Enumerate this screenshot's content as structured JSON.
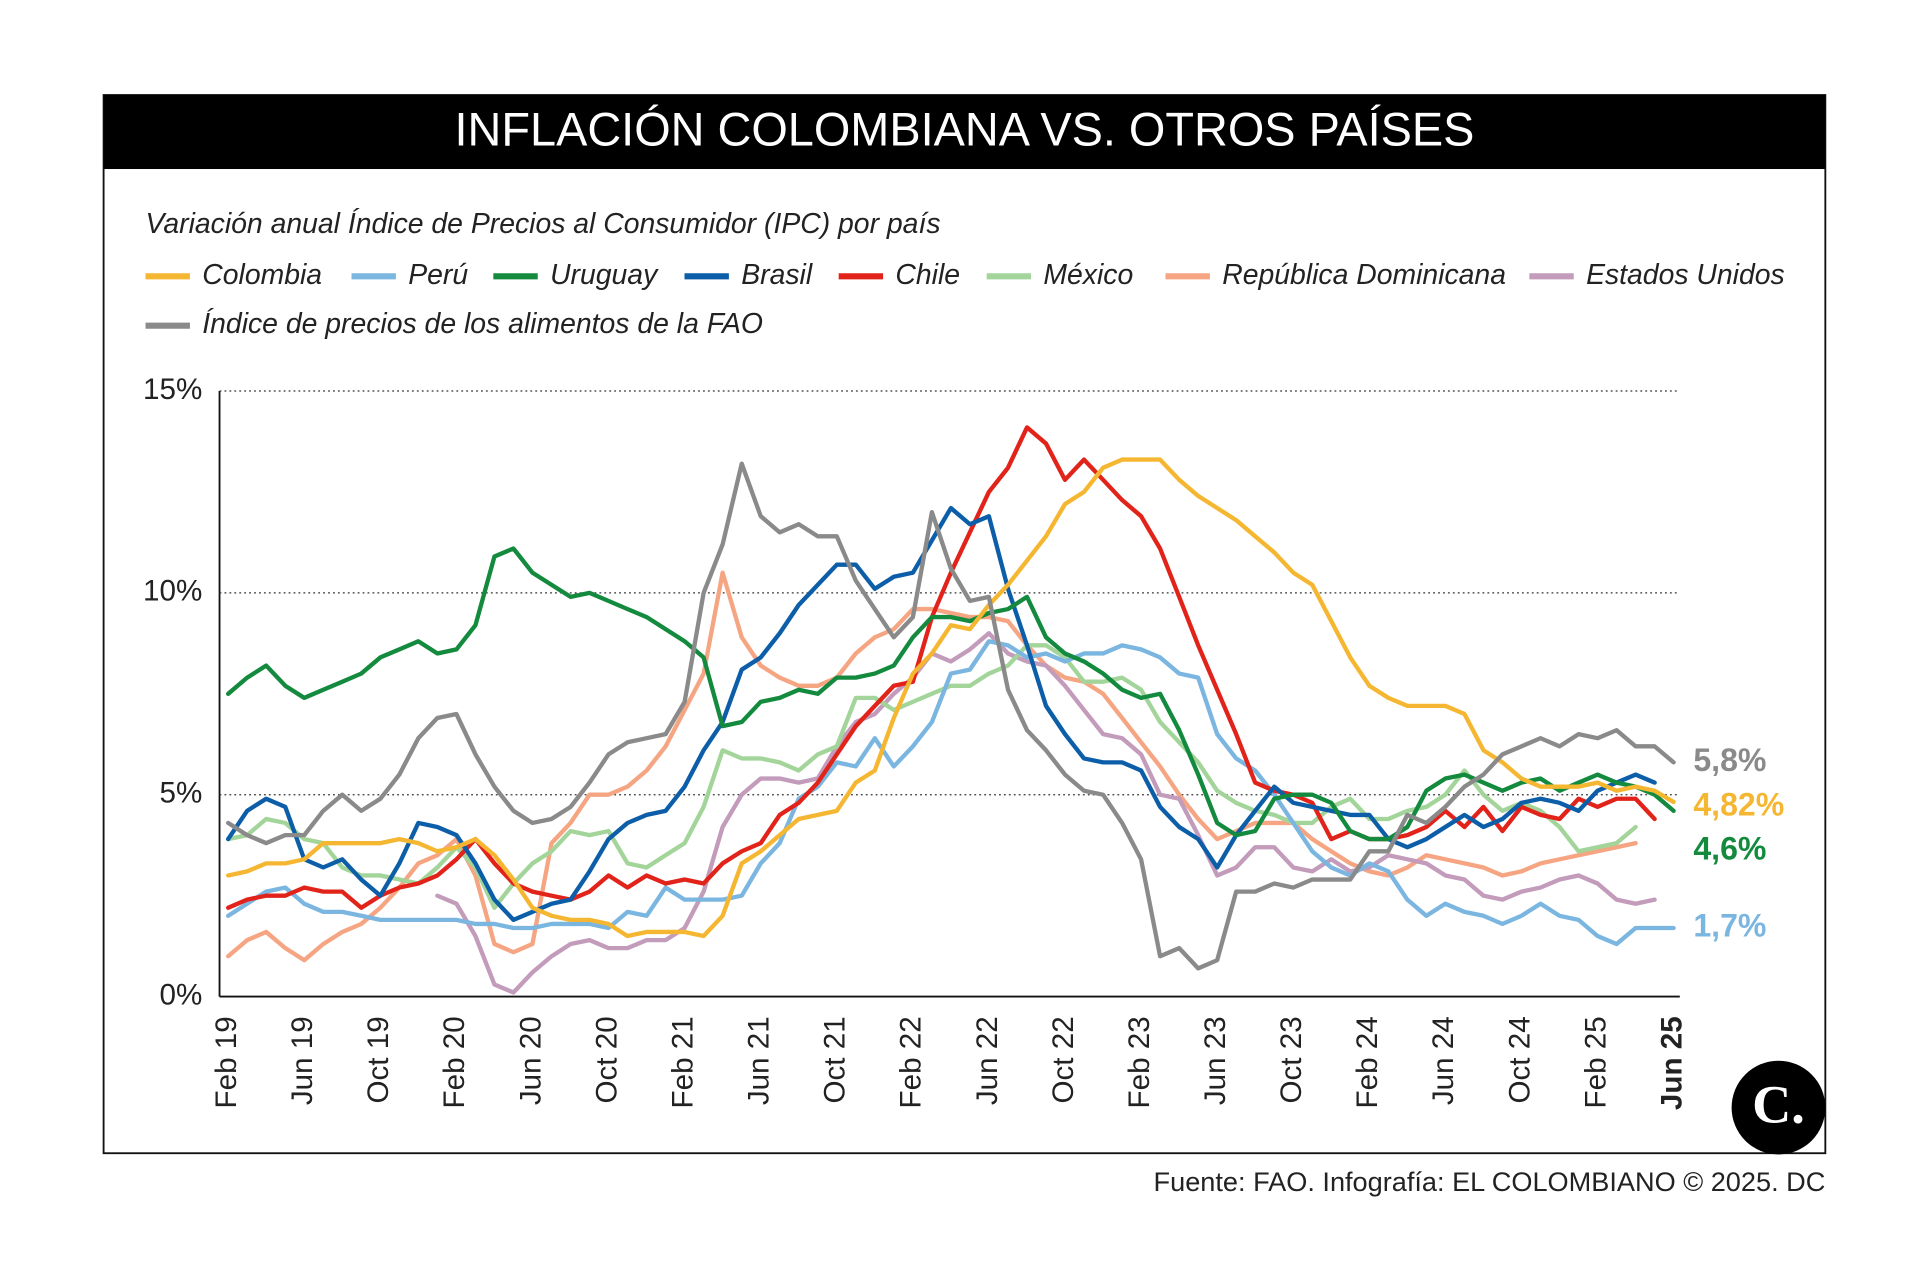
{
  "chart_data": {
    "type": "line",
    "title": "INFLACIÓN COLOMBIANA VS. OTROS PAÍSES",
    "subtitle": "Variación anual Índice de Precios al Consumidor (IPC) por país",
    "source": "Fuente: FAO. Infografía: EL COLOMBIANO © 2025. DC",
    "logo": "C.",
    "categories": [
      "Feb 19",
      null,
      null,
      null,
      "Jun 19",
      null,
      null,
      null,
      "Oct 19",
      null,
      null,
      null,
      "Feb 20",
      null,
      null,
      null,
      "Jun 20",
      null,
      null,
      null,
      "Oct 20",
      null,
      null,
      null,
      "Feb 21",
      null,
      null,
      null,
      "Jun 21",
      null,
      null,
      null,
      "Oct 21",
      null,
      null,
      null,
      "Feb 22",
      null,
      null,
      null,
      "Jun 22",
      null,
      null,
      null,
      "Oct 22",
      null,
      null,
      null,
      "Feb 23",
      null,
      null,
      null,
      "Jun 23",
      null,
      null,
      null,
      "Oct 23",
      null,
      null,
      null,
      "Feb 24",
      null,
      null,
      null,
      "Jun 24",
      null,
      null,
      null,
      "Oct 24",
      null,
      null,
      null,
      "Feb 25",
      null,
      null,
      null,
      "Jun 25"
    ],
    "ylim": [
      0,
      15
    ],
    "yticks": [
      {
        "value": 0,
        "label": "0%"
      },
      {
        "value": 5,
        "label": "5%"
      },
      {
        "value": 10,
        "label": "10%"
      },
      {
        "value": 15,
        "label": "15%"
      }
    ],
    "grid": true,
    "series": [
      {
        "name": "Colombia",
        "color": "#f5b731",
        "values": [
          3.0,
          3.1,
          3.3,
          3.3,
          3.4,
          3.8,
          3.8,
          3.8,
          3.8,
          3.9,
          3.8,
          3.6,
          3.7,
          3.9,
          3.5,
          2.9,
          2.2,
          2.0,
          1.9,
          1.9,
          1.8,
          1.5,
          1.6,
          1.6,
          1.6,
          1.5,
          2.0,
          3.3,
          3.6,
          4.0,
          4.4,
          4.5,
          4.6,
          5.3,
          5.6,
          6.9,
          8.0,
          8.5,
          9.2,
          9.1,
          9.7,
          10.2,
          10.8,
          11.4,
          12.2,
          12.5,
          13.1,
          13.3,
          13.3,
          13.3,
          12.8,
          12.4,
          12.1,
          11.8,
          11.4,
          11.0,
          10.5,
          10.2,
          9.3,
          8.4,
          7.7,
          7.4,
          7.2,
          7.2,
          7.2,
          7.0,
          6.1,
          5.8,
          5.4,
          5.2,
          5.2,
          5.2,
          5.3,
          5.1,
          5.2,
          5.1,
          4.82
        ],
        "value_labels": [
          null,
          null,
          null,
          null,
          null,
          null,
          null,
          null,
          null,
          null,
          null,
          null,
          null,
          null,
          null,
          null,
          null,
          null,
          null,
          null,
          null,
          null,
          null,
          null,
          null,
          null,
          null,
          null,
          null,
          null,
          null,
          null,
          null,
          null,
          null,
          null,
          null,
          null,
          null,
          null,
          null,
          null,
          null,
          null,
          null,
          null,
          null,
          null,
          null,
          null,
          null,
          null,
          null,
          null,
          null,
          null,
          null,
          null,
          null,
          null,
          null,
          null,
          null,
          null,
          null,
          null,
          null,
          null,
          null,
          null,
          null,
          null,
          null,
          null,
          null,
          null,
          "4,82%"
        ]
      },
      {
        "name": "Perú",
        "color": "#7bb6e0",
        "values": [
          2.0,
          2.3,
          2.6,
          2.7,
          2.3,
          2.1,
          2.1,
          2.0,
          1.9,
          1.9,
          1.9,
          1.9,
          1.9,
          1.8,
          1.8,
          1.7,
          1.7,
          1.8,
          1.8,
          1.8,
          1.7,
          2.1,
          2.0,
          2.7,
          2.4,
          2.4,
          2.4,
          2.5,
          3.3,
          3.8,
          4.9,
          5.2,
          5.8,
          5.7,
          6.4,
          5.7,
          6.2,
          6.8,
          8.0,
          8.1,
          8.8,
          8.7,
          8.4,
          8.5,
          8.3,
          8.5,
          8.5,
          8.7,
          8.6,
          8.4,
          8.0,
          7.9,
          6.5,
          5.9,
          5.6,
          5.0,
          4.3,
          3.6,
          3.2,
          3.0,
          3.3,
          3.1,
          2.4,
          2.0,
          2.3,
          2.1,
          2.0,
          1.8,
          2.0,
          2.3,
          2.0,
          1.9,
          1.5,
          1.3,
          1.7,
          1.7,
          1.7
        ],
        "value_labels": [
          null,
          null,
          null,
          null,
          null,
          null,
          null,
          null,
          null,
          null,
          null,
          null,
          null,
          null,
          null,
          null,
          null,
          null,
          null,
          null,
          null,
          null,
          null,
          null,
          null,
          null,
          null,
          null,
          null,
          null,
          null,
          null,
          null,
          null,
          null,
          null,
          null,
          null,
          null,
          null,
          null,
          null,
          null,
          null,
          null,
          null,
          null,
          null,
          null,
          null,
          null,
          null,
          null,
          null,
          null,
          null,
          null,
          null,
          null,
          null,
          null,
          null,
          null,
          null,
          null,
          null,
          null,
          null,
          null,
          null,
          null,
          null,
          null,
          null,
          null,
          null,
          "1,7%"
        ]
      },
      {
        "name": "Uruguay",
        "color": "#138a3e",
        "values": [
          7.5,
          7.9,
          8.2,
          7.7,
          7.4,
          7.6,
          7.8,
          8.0,
          8.4,
          8.6,
          8.8,
          8.5,
          8.6,
          9.2,
          10.9,
          11.1,
          10.5,
          10.2,
          9.9,
          10.0,
          9.8,
          9.6,
          9.4,
          9.1,
          8.8,
          8.4,
          6.7,
          6.8,
          7.3,
          7.4,
          7.6,
          7.5,
          7.9,
          7.9,
          8.0,
          8.2,
          8.9,
          9.4,
          9.4,
          9.3,
          9.5,
          9.6,
          9.9,
          8.9,
          8.5,
          8.3,
          8.0,
          7.6,
          7.4,
          7.5,
          6.6,
          5.5,
          4.3,
          4.0,
          4.1,
          4.9,
          5.0,
          5.0,
          4.8,
          4.1,
          3.9,
          3.9,
          4.2,
          5.1,
          5.4,
          5.5,
          5.3,
          5.1,
          5.3,
          5.4,
          5.1,
          5.3,
          5.5,
          5.3,
          5.2,
          5.0,
          4.6
        ],
        "value_labels": [
          null,
          null,
          null,
          null,
          null,
          null,
          null,
          null,
          null,
          null,
          null,
          null,
          null,
          null,
          null,
          null,
          null,
          null,
          null,
          null,
          null,
          null,
          null,
          null,
          null,
          null,
          null,
          null,
          null,
          null,
          null,
          null,
          null,
          null,
          null,
          null,
          null,
          null,
          null,
          null,
          null,
          null,
          null,
          null,
          null,
          null,
          null,
          null,
          null,
          null,
          null,
          null,
          null,
          null,
          null,
          null,
          null,
          null,
          null,
          null,
          null,
          null,
          null,
          null,
          null,
          null,
          null,
          null,
          null,
          null,
          null,
          null,
          null,
          null,
          null,
          null,
          "4,6%"
        ]
      },
      {
        "name": "Brasil",
        "color": "#0d5ea8",
        "values": [
          3.9,
          4.6,
          4.9,
          4.7,
          3.4,
          3.2,
          3.4,
          2.9,
          2.5,
          3.3,
          4.3,
          4.2,
          4.0,
          3.3,
          2.4,
          1.9,
          2.1,
          2.3,
          2.4,
          3.1,
          3.9,
          4.3,
          4.5,
          4.6,
          5.2,
          6.1,
          6.8,
          8.1,
          8.4,
          9.0,
          9.7,
          10.2,
          10.7,
          10.7,
          10.1,
          10.4,
          10.5,
          11.3,
          12.1,
          11.7,
          11.9,
          10.1,
          8.7,
          7.2,
          6.5,
          5.9,
          5.8,
          5.8,
          5.6,
          4.7,
          4.2,
          3.9,
          3.2,
          4.0,
          4.6,
          5.2,
          4.8,
          4.7,
          4.6,
          4.5,
          4.5,
          3.9,
          3.7,
          3.9,
          4.2,
          4.5,
          4.2,
          4.4,
          4.8,
          4.9,
          4.8,
          4.6,
          5.1,
          5.3,
          5.5,
          5.3,
          null
        ]
      },
      {
        "name": "Chile",
        "color": "#e2231a",
        "values": [
          2.2,
          2.4,
          2.5,
          2.5,
          2.7,
          2.6,
          2.6,
          2.2,
          2.5,
          2.7,
          2.8,
          3.0,
          3.4,
          3.9,
          3.3,
          2.8,
          2.6,
          2.5,
          2.4,
          2.6,
          3.0,
          2.7,
          3.0,
          2.8,
          2.9,
          2.8,
          3.3,
          3.6,
          3.8,
          4.5,
          4.8,
          5.3,
          6.0,
          6.7,
          7.2,
          7.7,
          7.8,
          9.4,
          10.5,
          11.5,
          12.5,
          13.1,
          14.1,
          13.7,
          12.8,
          13.3,
          12.8,
          12.3,
          11.9,
          11.1,
          9.9,
          8.7,
          7.6,
          6.5,
          5.3,
          5.1,
          5.0,
          4.8,
          3.9,
          4.1,
          3.9,
          3.9,
          4.0,
          4.2,
          4.6,
          4.2,
          4.7,
          4.1,
          4.7,
          4.5,
          4.4,
          4.9,
          4.7,
          4.9,
          4.9,
          4.4,
          null
        ]
      },
      {
        "name": "México",
        "color": "#a3d59a",
        "values": [
          3.9,
          4.0,
          4.4,
          4.3,
          3.9,
          3.8,
          3.2,
          3.0,
          3.0,
          2.9,
          2.8,
          3.2,
          3.7,
          3.2,
          2.2,
          2.8,
          3.3,
          3.6,
          4.1,
          4.0,
          4.1,
          3.3,
          3.2,
          3.5,
          3.8,
          4.7,
          6.1,
          5.9,
          5.9,
          5.8,
          5.6,
          6.0,
          6.2,
          7.4,
          7.4,
          7.1,
          7.3,
          7.5,
          7.7,
          7.7,
          8.0,
          8.2,
          8.7,
          8.7,
          8.4,
          7.8,
          7.8,
          7.9,
          7.6,
          6.8,
          6.3,
          5.8,
          5.1,
          4.8,
          4.6,
          4.5,
          4.3,
          4.3,
          4.7,
          4.9,
          4.4,
          4.4,
          4.6,
          4.7,
          5.0,
          5.6,
          5.0,
          4.6,
          4.8,
          4.6,
          4.2,
          3.6,
          3.7,
          3.8,
          4.2,
          null,
          null
        ]
      },
      {
        "name": "República Dominicana",
        "color": "#f6a583",
        "values": [
          1.0,
          1.4,
          1.6,
          1.2,
          0.9,
          1.3,
          1.6,
          1.8,
          2.2,
          2.7,
          3.3,
          3.5,
          3.9,
          3.0,
          1.3,
          1.1,
          1.3,
          3.8,
          4.3,
          5.0,
          5.0,
          5.2,
          5.6,
          6.2,
          7.1,
          8.0,
          10.5,
          8.9,
          8.2,
          7.9,
          7.7,
          7.7,
          7.9,
          8.5,
          8.9,
          9.1,
          9.6,
          9.6,
          9.5,
          9.4,
          9.4,
          9.3,
          8.7,
          8.2,
          7.9,
          7.8,
          7.5,
          6.9,
          6.3,
          5.7,
          5.0,
          4.4,
          3.9,
          4.1,
          4.3,
          4.3,
          4.3,
          3.9,
          3.6,
          3.3,
          3.1,
          3.0,
          3.2,
          3.5,
          3.4,
          3.3,
          3.2,
          3.0,
          3.1,
          3.3,
          3.4,
          3.5,
          3.6,
          3.7,
          3.8,
          null,
          null
        ]
      },
      {
        "name": "Estados Unidos",
        "color": "#c39bbb",
        "values": [
          null,
          null,
          null,
          null,
          null,
          null,
          null,
          null,
          null,
          null,
          null,
          2.5,
          2.3,
          1.5,
          0.3,
          0.1,
          0.6,
          1.0,
          1.3,
          1.4,
          1.2,
          1.2,
          1.4,
          1.4,
          1.7,
          2.6,
          4.2,
          5.0,
          5.4,
          5.4,
          5.3,
          5.4,
          6.2,
          6.8,
          7.0,
          7.5,
          7.9,
          8.5,
          8.3,
          8.6,
          9.0,
          8.5,
          8.3,
          8.2,
          7.7,
          7.1,
          6.5,
          6.4,
          6.0,
          5.0,
          4.9,
          4.0,
          3.0,
          3.2,
          3.7,
          3.7,
          3.2,
          3.1,
          3.4,
          3.1,
          3.2,
          3.5,
          3.4,
          3.3,
          3.0,
          2.9,
          2.5,
          2.4,
          2.6,
          2.7,
          2.9,
          3.0,
          2.8,
          2.4,
          2.3,
          2.4,
          null
        ]
      },
      {
        "name": "Índice de precios de los alimentos de la FAO",
        "color": "#8a8a8a",
        "values": [
          4.3,
          4.0,
          3.8,
          4.0,
          4.0,
          4.6,
          5.0,
          4.6,
          4.9,
          5.5,
          6.4,
          6.9,
          7.0,
          6.0,
          5.2,
          4.6,
          4.3,
          4.4,
          4.7,
          5.3,
          6.0,
          6.3,
          6.4,
          6.5,
          7.3,
          10.0,
          11.2,
          13.2,
          11.9,
          11.5,
          11.7,
          11.4,
          11.4,
          10.3,
          9.6,
          8.9,
          9.4,
          12.0,
          10.6,
          9.8,
          9.9,
          7.6,
          6.6,
          6.1,
          5.5,
          5.1,
          5.0,
          4.3,
          3.4,
          1.0,
          1.2,
          0.7,
          0.9,
          2.6,
          2.6,
          2.8,
          2.7,
          2.9,
          2.9,
          2.9,
          3.6,
          3.6,
          4.5,
          4.3,
          4.7,
          5.2,
          5.5,
          6.0,
          6.2,
          6.4,
          6.2,
          6.5,
          6.4,
          6.6,
          6.2,
          6.2,
          5.8
        ],
        "value_labels": [
          null,
          null,
          null,
          null,
          null,
          null,
          null,
          null,
          null,
          null,
          null,
          null,
          null,
          null,
          null,
          null,
          null,
          null,
          null,
          null,
          null,
          null,
          null,
          null,
          null,
          null,
          null,
          null,
          null,
          null,
          null,
          null,
          null,
          null,
          null,
          null,
          null,
          null,
          null,
          null,
          null,
          null,
          null,
          null,
          null,
          null,
          null,
          null,
          null,
          null,
          null,
          null,
          null,
          null,
          null,
          null,
          null,
          null,
          null,
          null,
          null,
          null,
          null,
          null,
          null,
          null,
          null,
          null,
          null,
          null,
          null,
          null,
          null,
          null,
          null,
          null,
          "5,8%"
        ]
      }
    ]
  }
}
